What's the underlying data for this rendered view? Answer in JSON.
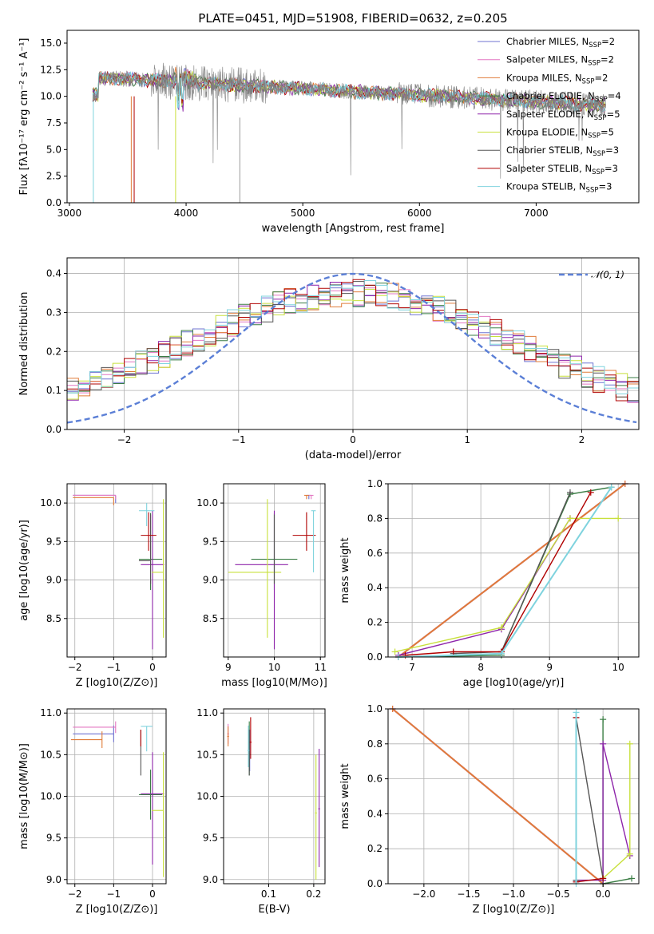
{
  "colors": {
    "chab_miles": "#6f73d2",
    "salp_miles": "#e377c2",
    "krou_miles": "#e07b39",
    "chab_elodie": "#3a7d44",
    "salp_elodie": "#8e24aa",
    "krou_elodie": "#c8e03c",
    "chab_stelib": "#555555",
    "salp_stelib": "#b00000",
    "krou_stelib": "#7fd3de",
    "gauss": "#5b7fd6"
  },
  "chart_data": [
    {
      "id": "spectrum",
      "type": "line",
      "title": "PLATE=0451, MJD=51908, FIBERID=0632, z=0.205",
      "xlabel": "wavelength [Angstrom, rest frame]",
      "ylabel": "Flux [fλ10⁻¹⁷ erg cm⁻² s⁻¹ A⁻¹]",
      "xlim": [
        2980,
        7880
      ],
      "ylim": [
        0,
        16.2
      ],
      "xticks": [
        "3000",
        "4000",
        "5000",
        "6000",
        "7000"
      ],
      "xtick_values": [
        3000,
        4000,
        5000,
        6000,
        7000
      ],
      "yticks": [
        "0.0",
        "2.5",
        "5.0",
        "7.5",
        "10.0",
        "12.5",
        "15.0"
      ],
      "ytick_values": [
        0,
        2.5,
        5,
        7.5,
        10,
        12.5,
        15
      ],
      "legend": "top-right",
      "series": [
        {
          "name": "Chabrier MILES, N",
          "sub": "SSP",
          "tail": "=2",
          "key": "chab_miles"
        },
        {
          "name": "Salpeter MILES, N",
          "sub": "SSP",
          "tail": "=2",
          "key": "salp_miles"
        },
        {
          "name": "Kroupa MILES, N",
          "sub": "SSP",
          "tail": "=2",
          "key": "krou_miles"
        },
        {
          "name": "Chabrier ELODIE, N",
          "sub": "SSP",
          "tail": "=4",
          "key": "chab_elodie"
        },
        {
          "name": "Salpeter ELODIE, N",
          "sub": "SSP",
          "tail": "=5",
          "key": "salp_elodie"
        },
        {
          "name": "Kroupa ELODIE, N",
          "sub": "SSP",
          "tail": "=5",
          "key": "krou_elodie"
        },
        {
          "name": "Chabrier STELIB, N",
          "sub": "SSP",
          "tail": "=3",
          "key": "chab_stelib"
        },
        {
          "name": "Salpeter STELIB, N",
          "sub": "SSP",
          "tail": "=3",
          "key": "salp_stelib"
        },
        {
          "name": "Kroupa STELIB, N",
          "sub": "SSP",
          "tail": "=3",
          "key": "krou_stelib"
        }
      ]
    },
    {
      "id": "residuals",
      "type": "histogram",
      "xlabel": "(data-model)/error",
      "ylabel": "Normed distribution",
      "xlim": [
        -2.5,
        2.5
      ],
      "ylim": [
        0,
        0.44
      ],
      "xticks": [
        "−2",
        "−1",
        "0",
        "1",
        "2"
      ],
      "xtick_values": [
        -2,
        -1,
        0,
        1,
        2
      ],
      "yticks": [
        "0.0",
        "0.1",
        "0.2",
        "0.3",
        "0.4"
      ],
      "ytick_values": [
        0,
        0.1,
        0.2,
        0.3,
        0.4
      ],
      "legend": "top-right",
      "reference": {
        "name": "𝒩(0, 1)",
        "mean": 0,
        "sigma": 1
      }
    },
    {
      "id": "age_vs_z",
      "type": "errorbar",
      "xlabel": "Z [log10(Z/Z⊙)]",
      "ylabel": "age  [log10(age/yr)]",
      "xlim": [
        -2.2,
        0.35
      ],
      "ylim": [
        8.0,
        10.25
      ],
      "xticks": [
        "−2",
        "−1",
        "0"
      ],
      "xtick_values": [
        -2,
        -1,
        0
      ],
      "yticks": [
        "8.5",
        "9.0",
        "9.5",
        "10.0"
      ],
      "ytick_values": [
        8.5,
        9.0,
        9.5,
        10.0
      ],
      "points": [
        {
          "key": "chab_miles",
          "x": -0.95,
          "xerr": [
            1.1,
            0.0
          ],
          "y": 10.1,
          "yerr": [
            0.1,
            0.0
          ]
        },
        {
          "key": "salp_miles",
          "x": -0.95,
          "xerr": [
            1.1,
            0.0
          ],
          "y": 10.1,
          "yerr": [
            0.05,
            0.0
          ]
        },
        {
          "key": "krou_miles",
          "x": -1.0,
          "xerr": [
            1.05,
            0.0
          ],
          "y": 10.07,
          "yerr": [
            0.1,
            0.0
          ]
        },
        {
          "key": "chab_elodie",
          "x": -0.05,
          "xerr": [
            0.3,
            0.3
          ],
          "y": 9.27,
          "yerr": [
            0.4,
            0.6
          ]
        },
        {
          "key": "salp_elodie",
          "x": 0.0,
          "xerr": [
            0.3,
            0.3
          ],
          "y": 9.2,
          "yerr": [
            1.1,
            0.7
          ]
        },
        {
          "key": "krou_elodie",
          "x": 0.28,
          "xerr": [
            0.3,
            0.0
          ],
          "y": 9.1,
          "yerr": [
            0.85,
            0.95
          ]
        },
        {
          "key": "chab_stelib",
          "x": -0.05,
          "xerr": [
            0.3,
            0.0
          ],
          "y": 9.25,
          "yerr": [
            0.3,
            0.6
          ]
        },
        {
          "key": "salp_stelib",
          "x": -0.1,
          "xerr": [
            0.2,
            0.2
          ],
          "y": 9.58,
          "yerr": [
            0.2,
            0.3
          ]
        },
        {
          "key": "krou_stelib",
          "x": -0.15,
          "xerr": [
            0.2,
            0.2
          ],
          "y": 9.9,
          "yerr": [
            0.2,
            0.1
          ]
        }
      ]
    },
    {
      "id": "age_vs_mass",
      "type": "errorbar",
      "xlabel": "mass [log10(M/M⊙)]",
      "ylabel": "",
      "xlim": [
        8.9,
        11.1
      ],
      "ylim": [
        8.0,
        10.25
      ],
      "xticks": [
        "9",
        "10",
        "11"
      ],
      "xtick_values": [
        9,
        10,
        11
      ],
      "yticks": [
        "8.5",
        "9.0",
        "9.5",
        "10.0"
      ],
      "ytick_values": [
        8.5,
        9.0,
        9.5,
        10.0
      ],
      "points": [
        {
          "key": "chab_miles",
          "x": 10.75,
          "xerr": [
            0.05,
            0.05
          ],
          "y": 10.1,
          "yerr": [
            0.05,
            0.0
          ]
        },
        {
          "key": "salp_miles",
          "x": 10.8,
          "xerr": [
            0.05,
            0.05
          ],
          "y": 10.1,
          "yerr": [
            0.05,
            0.0
          ]
        },
        {
          "key": "krou_miles",
          "x": 10.7,
          "xerr": [
            0.05,
            0.05
          ],
          "y": 10.1,
          "yerr": [
            0.05,
            0.0
          ]
        },
        {
          "key": "chab_elodie",
          "x": 10.0,
          "xerr": [
            0.5,
            0.5
          ],
          "y": 9.27,
          "yerr": [
            0.4,
            0.6
          ]
        },
        {
          "key": "salp_elodie",
          "x": 10.0,
          "xerr": [
            0.85,
            0.3
          ],
          "y": 9.2,
          "yerr": [
            1.1,
            0.7
          ]
        },
        {
          "key": "krou_elodie",
          "x": 9.85,
          "xerr": [
            0.85,
            0.3
          ],
          "y": 9.1,
          "yerr": [
            0.85,
            0.95
          ]
        },
        {
          "key": "chab_stelib",
          "x": 10.0,
          "xerr": [
            0.0,
            0.0
          ],
          "y": 9.25,
          "yerr": [
            0.3,
            0.6
          ]
        },
        {
          "key": "salp_stelib",
          "x": 10.7,
          "xerr": [
            0.3,
            0.2
          ],
          "y": 9.58,
          "yerr": [
            0.2,
            0.3
          ]
        },
        {
          "key": "krou_stelib",
          "x": 10.85,
          "xerr": [
            0.05,
            0.05
          ],
          "y": 9.9,
          "yerr": [
            0.8,
            0.0
          ]
        }
      ]
    },
    {
      "id": "massweight_vs_age",
      "type": "line",
      "xlabel": "age  [log10(age/yr)]",
      "ylabel": "mass weight",
      "xlim": [
        6.65,
        10.3
      ],
      "ylim": [
        0,
        1.0
      ],
      "xticks": [
        "7",
        "8",
        "9",
        "10"
      ],
      "xtick_values": [
        7,
        8,
        9,
        10
      ],
      "yticks": [
        "0.0",
        "0.2",
        "0.4",
        "0.6",
        "0.8",
        "1.0"
      ],
      "ytick_values": [
        0,
        0.2,
        0.4,
        0.6,
        0.8,
        1.0
      ],
      "lines": [
        {
          "key": "chab_miles",
          "x": [
            6.8,
            10.1
          ],
          "y": [
            0.0,
            1.0
          ]
        },
        {
          "key": "salp_miles",
          "x": [
            6.8,
            10.1
          ],
          "y": [
            0.0,
            1.0
          ]
        },
        {
          "key": "krou_miles",
          "x": [
            6.8,
            10.1
          ],
          "y": [
            0.0,
            1.0
          ]
        },
        {
          "key": "chab_elodie",
          "x": [
            6.8,
            8.3,
            8.3,
            9.3,
            9.9
          ],
          "y": [
            0.0,
            0.01,
            0.03,
            0.94,
            0.98
          ]
        },
        {
          "key": "salp_elodie",
          "x": [
            6.8,
            8.3,
            9.3,
            9.3
          ],
          "y": [
            0.01,
            0.16,
            0.8,
            0.8
          ]
        },
        {
          "key": "krou_elodie",
          "x": [
            6.75,
            8.3,
            9.3,
            10.0
          ],
          "y": [
            0.03,
            0.17,
            0.8,
            0.8
          ]
        },
        {
          "key": "chab_stelib",
          "x": [
            7.6,
            8.3,
            9.3
          ],
          "y": [
            0.02,
            0.03,
            0.95
          ]
        },
        {
          "key": "salp_stelib",
          "x": [
            6.9,
            7.6,
            8.3,
            9.6
          ],
          "y": [
            0.01,
            0.03,
            0.03,
            0.95
          ]
        },
        {
          "key": "krou_stelib",
          "x": [
            6.8,
            8.3,
            9.9
          ],
          "y": [
            0.0,
            0.02,
            0.98
          ]
        }
      ]
    },
    {
      "id": "mass_vs_z",
      "type": "errorbar",
      "xlabel": "Z [log10(Z/Z⊙)]",
      "ylabel": "mass [log10(M/M⊙)]",
      "xlim": [
        -2.2,
        0.35
      ],
      "ylim": [
        8.95,
        11.05
      ],
      "xticks": [
        "−2",
        "−1",
        "0"
      ],
      "xtick_values": [
        -2,
        -1,
        0
      ],
      "yticks": [
        "9.0",
        "9.5",
        "10.0",
        "10.5",
        "11.0"
      ],
      "ytick_values": [
        9.0,
        9.5,
        10.0,
        10.5,
        11.0
      ],
      "points": [
        {
          "key": "chab_miles",
          "x": -1.0,
          "xerr": [
            1.05,
            0.0
          ],
          "y": 10.75,
          "yerr": [
            0.1,
            0.1
          ]
        },
        {
          "key": "salp_miles",
          "x": -0.95,
          "xerr": [
            1.1,
            0.0
          ],
          "y": 10.83,
          "yerr": [
            0.07,
            0.07
          ]
        },
        {
          "key": "krou_miles",
          "x": -1.3,
          "xerr": [
            0.8,
            0.0
          ],
          "y": 10.68,
          "yerr": [
            0.1,
            0.1
          ]
        },
        {
          "key": "chab_elodie",
          "x": -0.05,
          "xerr": [
            0.3,
            0.3
          ],
          "y": 10.02,
          "yerr": [
            0.3,
            0.3
          ]
        },
        {
          "key": "salp_elodie",
          "x": 0.0,
          "xerr": [
            0.3,
            0.3
          ],
          "y": 10.03,
          "yerr": [
            0.85,
            0.5
          ]
        },
        {
          "key": "krou_elodie",
          "x": 0.28,
          "xerr": [
            0.3,
            0.0
          ],
          "y": 9.83,
          "yerr": [
            0.8,
            0.7
          ]
        },
        {
          "key": "chab_stelib",
          "x": -0.3,
          "xerr": [
            0.0,
            0.0
          ],
          "y": 10.5,
          "yerr": [
            0.25,
            0.3
          ]
        },
        {
          "key": "salp_stelib",
          "x": -0.3,
          "xerr": [
            0.0,
            0.0
          ],
          "y": 10.7,
          "yerr": [
            0.1,
            0.1
          ]
        },
        {
          "key": "krou_stelib",
          "x": -0.15,
          "xerr": [
            0.15,
            0.15
          ],
          "y": 10.84,
          "yerr": [
            0.3,
            0.0
          ]
        }
      ]
    },
    {
      "id": "mass_vs_ebv",
      "type": "errorbar",
      "xlabel": "E(B-V)",
      "ylabel": "",
      "xlim": [
        0.0,
        0.225
      ],
      "ylim": [
        8.95,
        11.05
      ],
      "xticks": [
        "0.1",
        "0.2"
      ],
      "xtick_values": [
        0.1,
        0.2
      ],
      "yticks": [
        "9.0",
        "9.5",
        "10.0",
        "10.5",
        "11.0"
      ],
      "ytick_values": [
        9.0,
        9.5,
        10.0,
        10.5,
        11.0
      ],
      "points": [
        {
          "key": "chab_miles",
          "x": 0.058,
          "xerr": [
            0.002,
            0.002
          ],
          "y": 10.5,
          "yerr": [
            0.2,
            0.3
          ]
        },
        {
          "key": "salp_miles",
          "x": 0.01,
          "xerr": [
            0.002,
            0.002
          ],
          "y": 10.75,
          "yerr": [
            0.12,
            0.12
          ]
        },
        {
          "key": "krou_miles",
          "x": 0.01,
          "xerr": [
            0.002,
            0.002
          ],
          "y": 10.72,
          "yerr": [
            0.12,
            0.12
          ]
        },
        {
          "key": "chab_elodie",
          "x": 0.057,
          "xerr": [
            0.002,
            0.002
          ],
          "y": 10.5,
          "yerr": [
            0.25,
            0.4
          ]
        },
        {
          "key": "salp_elodie",
          "x": 0.212,
          "xerr": [
            0.002,
            0.002
          ],
          "y": 9.85,
          "yerr": [
            0.7,
            0.72
          ]
        },
        {
          "key": "krou_elodie",
          "x": 0.205,
          "xerr": [
            0.002,
            0.002
          ],
          "y": 9.8,
          "yerr": [
            0.8,
            0.7
          ]
        },
        {
          "key": "chab_stelib",
          "x": 0.057,
          "xerr": [
            0.002,
            0.002
          ],
          "y": 10.5,
          "yerr": [
            0.25,
            0.3
          ]
        },
        {
          "key": "salp_stelib",
          "x": 0.06,
          "xerr": [
            0.002,
            0.002
          ],
          "y": 10.65,
          "yerr": [
            0.2,
            0.3
          ]
        },
        {
          "key": "krou_stelib",
          "x": 0.055,
          "xerr": [
            0.002,
            0.002
          ],
          "y": 10.55,
          "yerr": [
            0.2,
            0.3
          ]
        }
      ]
    },
    {
      "id": "massweight_vs_z",
      "type": "line",
      "xlabel": "Z [log10(Z/Z⊙)]",
      "ylabel": "mass weight",
      "xlim": [
        -2.4,
        0.4
      ],
      "ylim": [
        0,
        1.0
      ],
      "xticks": [
        "−2.0",
        "−1.5",
        "−1.0",
        "−0.5",
        "0.0"
      ],
      "xtick_values": [
        -2.0,
        -1.5,
        -1.0,
        -0.5,
        0.0
      ],
      "yticks": [
        "0.0",
        "0.2",
        "0.4",
        "0.6",
        "0.8",
        "1.0"
      ],
      "ytick_values": [
        0,
        0.2,
        0.4,
        0.6,
        0.8,
        1.0
      ],
      "lines": [
        {
          "key": "chab_miles",
          "x": [
            -2.35,
            0.0
          ],
          "y": [
            1.0,
            0.0
          ]
        },
        {
          "key": "salp_miles",
          "x": [
            -2.35,
            0.0
          ],
          "y": [
            1.0,
            0.0
          ]
        },
        {
          "key": "krou_miles",
          "x": [
            -2.35,
            0.0
          ],
          "y": [
            1.0,
            0.0
          ]
        },
        {
          "key": "chab_elodie",
          "x": [
            0.0,
            0.0,
            0.32
          ],
          "y": [
            0.94,
            0.0,
            0.03
          ]
        },
        {
          "key": "salp_elodie",
          "x": [
            -0.3,
            0.0,
            0.0,
            0.3
          ],
          "y": [
            0.02,
            0.02,
            0.8,
            0.16
          ]
        },
        {
          "key": "krou_elodie",
          "x": [
            0.0,
            0.3,
            0.3
          ],
          "y": [
            0.03,
            0.17,
            0.8
          ]
        },
        {
          "key": "chab_stelib",
          "x": [
            -0.3,
            -0.3,
            0.0
          ],
          "y": [
            0.02,
            0.95,
            0.03
          ]
        },
        {
          "key": "salp_stelib",
          "x": [
            -0.3,
            -0.3,
            0.0
          ],
          "y": [
            0.95,
            0.01,
            0.03
          ]
        },
        {
          "key": "krou_stelib",
          "x": [
            -0.3,
            -0.3
          ],
          "y": [
            0.0,
            0.98
          ]
        }
      ]
    }
  ]
}
